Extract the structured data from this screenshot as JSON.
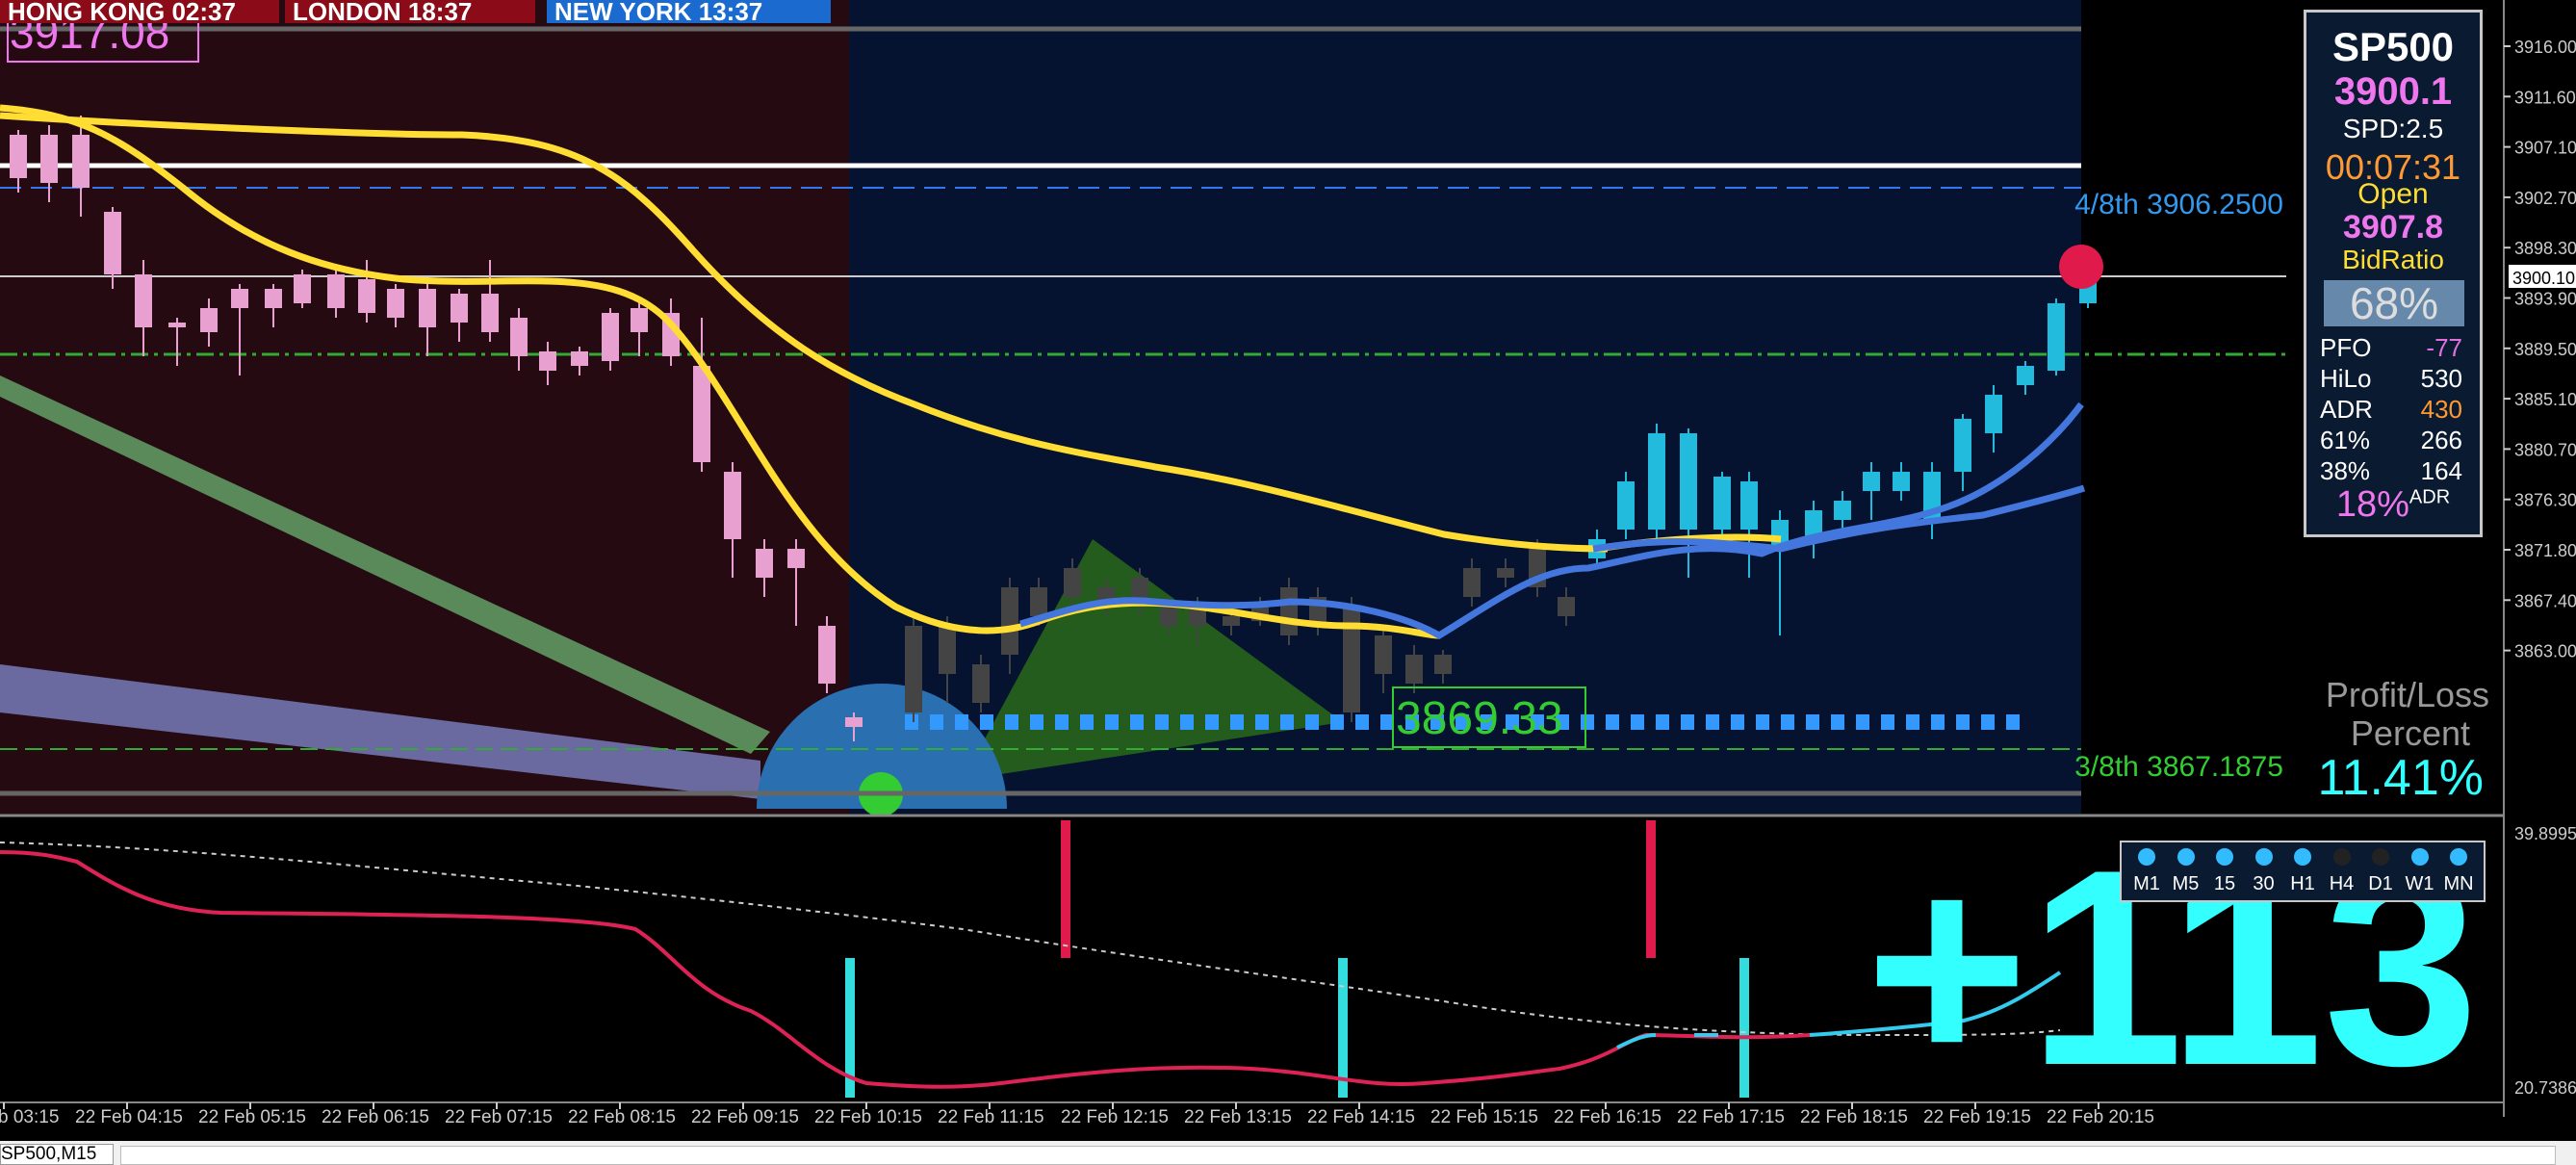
{
  "sessions": {
    "hongkong": "HONG KONG 02:37",
    "london": "LONDON  18:37",
    "newyork": "NEW YORK  13:37"
  },
  "top_price_box": "3917.08",
  "fib_labels": {
    "upper": "4/8th  3906.2500",
    "lower": "3/8th  3867.1875"
  },
  "level_box": "3869.33",
  "price_axis": {
    "ticks": [
      "3916.00",
      "3911.60",
      "3907.10",
      "3902.70",
      "3898.30",
      "3893.90",
      "3889.50",
      "3885.10",
      "3880.70",
      "3876.30",
      "3871.80",
      "3867.40",
      "3863.00"
    ],
    "current_price": "3900.10"
  },
  "indicator_axis": {
    "top": "39.8995",
    "bottom": "20.7386"
  },
  "time_axis": [
    "b 03:15",
    "22 Feb 04:15",
    "22 Feb 05:15",
    "22 Feb 06:15",
    "22 Feb 07:15",
    "22 Feb 08:15",
    "22 Feb 09:15",
    "22 Feb 10:15",
    "22 Feb 11:15",
    "22 Feb 12:15",
    "22 Feb 13:15",
    "22 Feb 14:15",
    "22 Feb 15:15",
    "22 Feb 16:15",
    "22 Feb 17:15",
    "22 Feb 18:15",
    "22 Feb 19:15",
    "22 Feb 20:15"
  ],
  "info_panel": {
    "symbol": "SP500",
    "price": "3900.1",
    "spread": "SPD:2.5",
    "timer": "00:07:31",
    "open_label": "Open",
    "open_price": "3907.8",
    "bidratio_label": "BidRatio",
    "bidratio": "68%",
    "stats": [
      {
        "name": "PFO",
        "value": "-77",
        "color": "#e070e0"
      },
      {
        "name": "HiLo",
        "value": "530",
        "color": "#ffffff"
      },
      {
        "name": "ADR",
        "value": "430",
        "color": "#ff9933"
      },
      {
        "name": "61%",
        "value": "266",
        "color": "#ffffff"
      },
      {
        "name": "38%",
        "value": "164",
        "color": "#ffffff"
      }
    ],
    "adr_pct": "18%",
    "adr_suffix": "ADR"
  },
  "profit_loss": {
    "line1": "Profit/Loss",
    "line2": "Percent",
    "value": "11.41%"
  },
  "big_points": "+113",
  "timeframes": [
    {
      "label": "M1",
      "color": "#33bbff"
    },
    {
      "label": "M5",
      "color": "#33bbff"
    },
    {
      "label": "15",
      "color": "#33bbff"
    },
    {
      "label": "30",
      "color": "#33bbff"
    },
    {
      "label": "H1",
      "color": "#33bbff"
    },
    {
      "label": "H4",
      "color": "#222222"
    },
    {
      "label": "D1",
      "color": "#222222"
    },
    {
      "label": "W1",
      "color": "#33bbff"
    },
    {
      "label": "MN",
      "color": "#33bbff"
    }
  ],
  "symbol_tab": "SP500,M15",
  "colors": {
    "bull": "#22bbdd",
    "bear_old": "#e8a0d0",
    "bear_new": "#444444",
    "ma_yellow": "#ffdd33",
    "ma_blue": "#4477dd",
    "accent_cyan": "#33ffff",
    "accent_magenta": "#ee77ee"
  }
}
